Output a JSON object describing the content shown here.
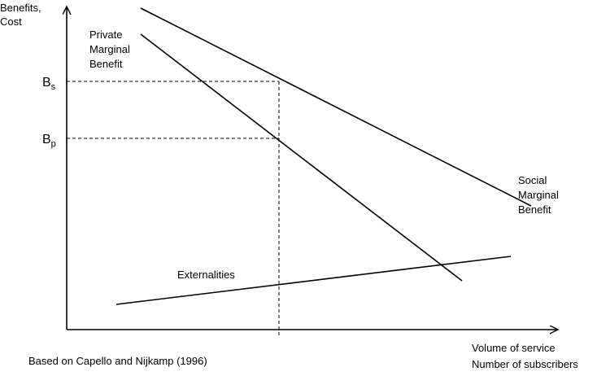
{
  "y_axis_label": [
    "Benefits,",
    "Cost"
  ],
  "private_label": [
    "Private",
    "Marginal",
    "Benefit"
  ],
  "social_label": [
    "Social",
    "Marginal",
    "Benefit"
  ],
  "externalities_label": "Externalities",
  "b_s": {
    "main": "B",
    "sub": "s"
  },
  "b_p": {
    "main": "B",
    "sub": "p"
  },
  "x_axis_label": [
    "Volume of service",
    "Number of subscribers"
  ],
  "source": "Based on Capello and Nijkamp (1996)"
}
